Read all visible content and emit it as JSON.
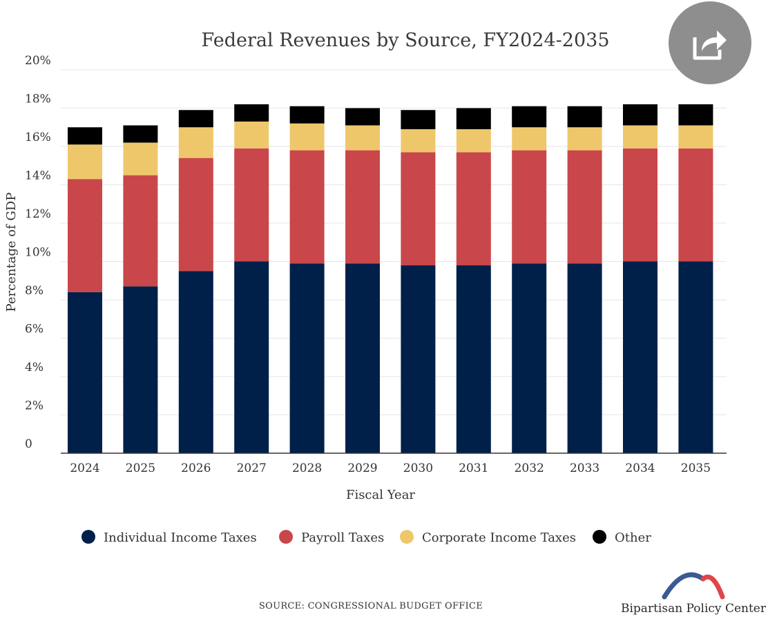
{
  "chart_data": {
    "type": "bar",
    "stacked": true,
    "title": "Federal Revenues by Source, FY2024-2035",
    "xlabel": "Fiscal Year",
    "ylabel": "Percentage of GDP",
    "ylim": [
      0,
      20
    ],
    "yticks": [
      0,
      2,
      4,
      6,
      8,
      10,
      12,
      14,
      16,
      18,
      20
    ],
    "ytick_labels": [
      "0",
      "2%",
      "4%",
      "6%",
      "8%",
      "10%",
      "12%",
      "14%",
      "16%",
      "18%",
      "20%"
    ],
    "grid": true,
    "legend_position": "bottom",
    "categories": [
      "2024",
      "2025",
      "2026",
      "2027",
      "2028",
      "2029",
      "2030",
      "2031",
      "2032",
      "2033",
      "2034",
      "2035"
    ],
    "series": [
      {
        "name": "Individual Income Taxes",
        "color": "#00204a",
        "values": [
          8.4,
          8.7,
          9.5,
          10.0,
          9.9,
          9.9,
          9.8,
          9.8,
          9.9,
          9.9,
          10.0,
          10.0
        ]
      },
      {
        "name": "Payroll Taxes",
        "color": "#c9474a",
        "values": [
          5.9,
          5.8,
          5.9,
          5.9,
          5.9,
          5.9,
          5.9,
          5.9,
          5.9,
          5.9,
          5.9,
          5.9
        ]
      },
      {
        "name": "Corporate Income Taxes",
        "color": "#efc76b",
        "values": [
          1.8,
          1.7,
          1.6,
          1.4,
          1.4,
          1.3,
          1.2,
          1.2,
          1.2,
          1.2,
          1.2,
          1.2
        ]
      },
      {
        "name": "Other",
        "color": "#000000",
        "values": [
          0.9,
          0.9,
          0.9,
          0.9,
          0.9,
          0.9,
          1.0,
          1.1,
          1.1,
          1.1,
          1.1,
          1.1
        ]
      }
    ]
  },
  "footer": {
    "source": "SOURCE: CONGRESSIONAL BUDGET OFFICE",
    "brand": "Bipartisan Policy Center"
  },
  "share": {
    "icon": "share-icon"
  },
  "colors": {
    "grid": "#e6e6e6",
    "axis": "#333333",
    "logo_red": "#e0454a",
    "logo_blue": "#3a5a93",
    "share_bg": "#8e8e8e"
  }
}
